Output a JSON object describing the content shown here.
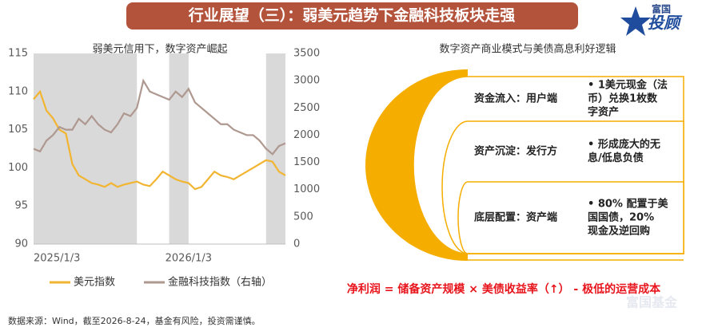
{
  "header": {
    "title": "行业展望（三）：弱美元趋势下金融科技板块走强",
    "logo_top": "富国",
    "logo_bottom": "投顾",
    "watermark": "富国基金"
  },
  "chart_data": {
    "type": "line",
    "title": "弱美元信用下，数字资产崛起",
    "categories": [
      "2025/1/3",
      null,
      null,
      null,
      null,
      null,
      null,
      null,
      null,
      null,
      null,
      null,
      null,
      null,
      null,
      null,
      null,
      null,
      null,
      null,
      null,
      null,
      null,
      null,
      "2026/1/3",
      null,
      null,
      null,
      null,
      null,
      null,
      null,
      null,
      null,
      null,
      null,
      null,
      null,
      null,
      null
    ],
    "series": [
      {
        "name": "美元指数",
        "color": "#f2b531",
        "axis": "y",
        "values": [
          109,
          110,
          107.5,
          106.5,
          105,
          104.5,
          100.5,
          99,
          98.5,
          98,
          97.8,
          97.5,
          98,
          97.5,
          97.8,
          98,
          98.2,
          97.8,
          97.6,
          98.5,
          99.5,
          99,
          98.5,
          98.2,
          98,
          97.2,
          97.5,
          98.5,
          99.5,
          99,
          98.8,
          98.5,
          99,
          99.5,
          100,
          100.5,
          101,
          100.8,
          99.5,
          99
        ]
      },
      {
        "name": "金融科技指数（右轴）",
        "color": "#ae9890",
        "axis": "y2",
        "values": [
          1750,
          1700,
          1900,
          2000,
          2150,
          2100,
          2100,
          2300,
          2200,
          2350,
          2200,
          2100,
          2050,
          2200,
          2400,
          2350,
          2500,
          3000,
          2800,
          2750,
          2700,
          2650,
          2800,
          2700,
          2850,
          2600,
          2500,
          2400,
          2300,
          2200,
          2200,
          2100,
          2050,
          2000,
          2000,
          1900,
          1750,
          1650,
          1800,
          1850
        ]
      }
    ],
    "ylim": [
      90,
      115
    ],
    "yticks": [
      90,
      95,
      100,
      105,
      110,
      115
    ],
    "y2lim": [
      0,
      3500
    ],
    "y2ticks": [
      0,
      500,
      1000,
      1500,
      2000,
      2500,
      3000,
      3500
    ],
    "shaded_spans": [
      {
        "start": 0,
        "end": 16
      },
      {
        "start": 21,
        "end": 24
      },
      {
        "start": 36,
        "end": 39
      }
    ],
    "shade_color": "#d9d9d9"
  },
  "diagram": {
    "title": "数字资产商业模式与美债高息利好逻辑",
    "rows": [
      {
        "label": "资金流入：用户端",
        "lines": [
          "• 1美元现金（法",
          "币）兑换1枚数",
          "字资产"
        ]
      },
      {
        "label": "资产沉淀：发行方",
        "lines": [
          "• 形成庞大的无",
          "息/低息负债"
        ]
      },
      {
        "label": "底层配置：资产端",
        "lines": [
          "• 80% 配置于美",
          "国国债，20%",
          "现金及逆回购"
        ]
      }
    ],
    "formula": "净利润 = 储备资产规模 × 美债收益率（↑） - 极低的运营成本"
  },
  "footer": {
    "source": "数据来源：Wind，截至2026-8-24，基金有风险，投资需谨慎。"
  }
}
